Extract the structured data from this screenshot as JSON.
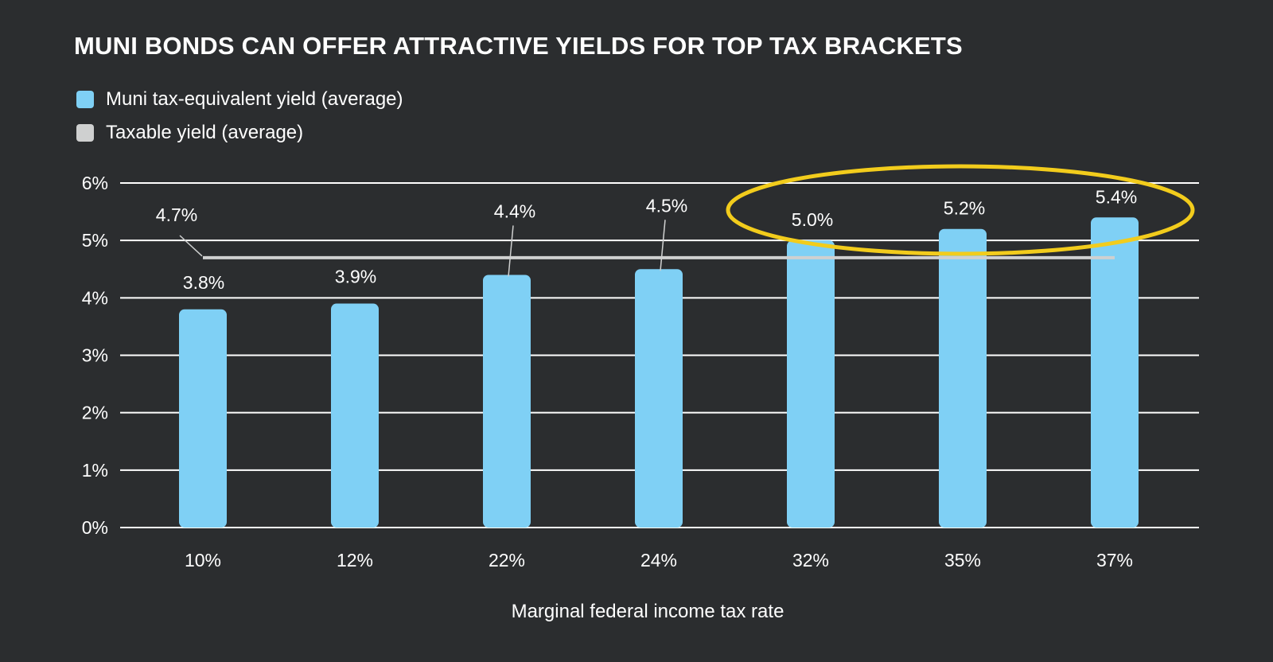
{
  "chart_data": {
    "type": "bar",
    "title": "MUNI BONDS CAN OFFER ATTRACTIVE YIELDS FOR TOP TAX BRACKETS",
    "xlabel": "Marginal federal income tax rate",
    "ylabel": "",
    "categories": [
      "10%",
      "12%",
      "22%",
      "24%",
      "32%",
      "35%",
      "37%"
    ],
    "ylim": [
      0,
      6
    ],
    "yticks": [
      "0%",
      "1%",
      "2%",
      "3%",
      "4%",
      "5%",
      "6%"
    ],
    "grid": true,
    "legend_position": "top-left",
    "series": [
      {
        "name": "Muni tax-equivalent yield (average)",
        "kind": "bar",
        "color": "#7fd0f5",
        "values": [
          3.8,
          3.9,
          4.4,
          4.5,
          5.0,
          5.2,
          5.4
        ],
        "labels": [
          "3.8%",
          "3.9%",
          "4.4%",
          "4.5%",
          "5.0%",
          "5.2%",
          "5.4%"
        ]
      },
      {
        "name": "Taxable yield (average)",
        "kind": "line",
        "color": "#cfd0d0",
        "value": 4.7,
        "label": "4.7%"
      }
    ],
    "highlight": {
      "categories": [
        "32%",
        "35%",
        "37%"
      ],
      "color": "#f2cc1c"
    }
  }
}
